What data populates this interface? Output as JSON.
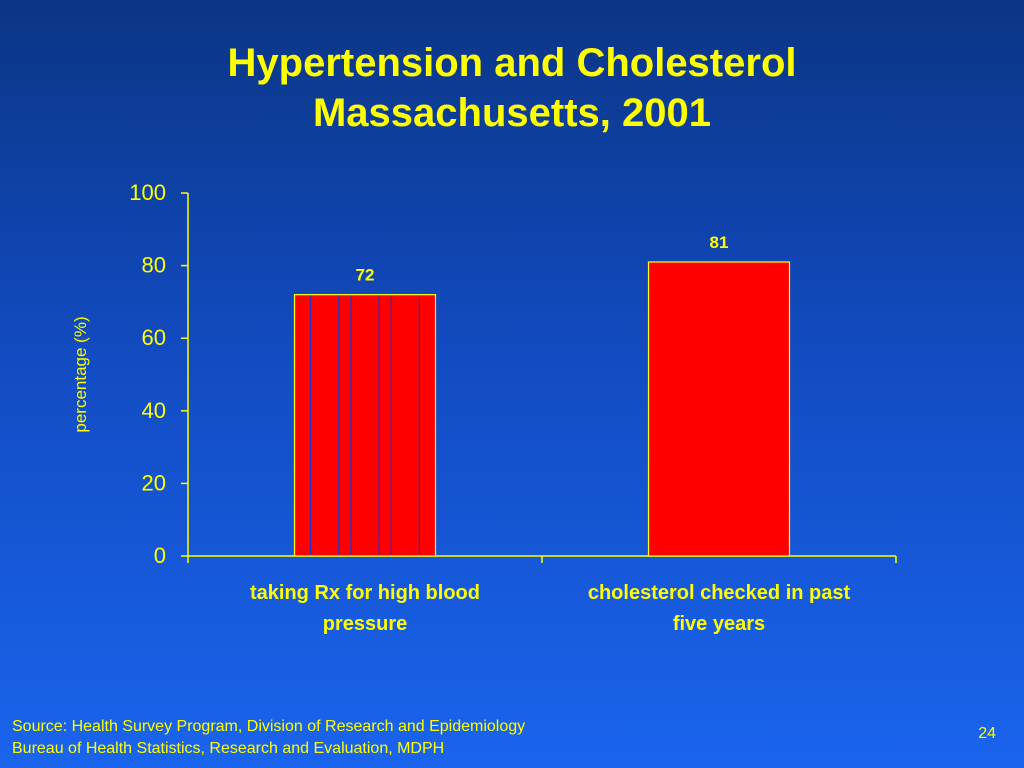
{
  "slide": {
    "title_line1": "Hypertension and Cholesterol",
    "title_line2": "Massachusetts, 2001",
    "source_line1": "Source: Health Survey Program, Division of Research and Epidemiology",
    "source_line2": "Bureau of Health Statistics, Research and Evaluation, MDPH",
    "page_number": "24"
  },
  "colors": {
    "text": "#ffff00",
    "bar_fill": "#ff0000",
    "bar_stroke": "#ffff00",
    "bar_hatch": "#2233cc"
  },
  "chart_data": {
    "type": "bar",
    "title": "Hypertension and Cholesterol Massachusetts, 2001",
    "ylabel": "percentage (%)",
    "xlabel": "",
    "ylim": [
      0,
      100
    ],
    "yticks": [
      0,
      20,
      40,
      60,
      80,
      100
    ],
    "categories": [
      [
        "taking Rx for high blood",
        "pressure"
      ],
      [
        "cholesterol checked in past",
        "five years"
      ]
    ],
    "values": [
      72,
      81
    ],
    "data_labels": [
      "72",
      "81"
    ],
    "hatched": [
      true,
      false
    ],
    "grid": false,
    "legend": "none"
  }
}
